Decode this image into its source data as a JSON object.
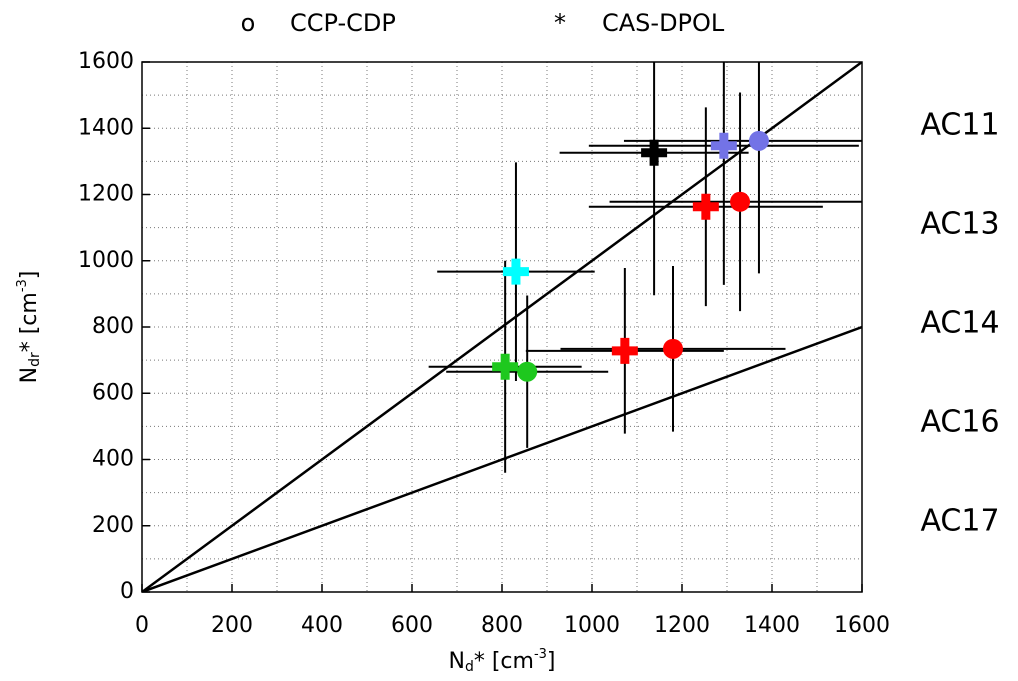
{
  "chart_data": {
    "type": "scatter",
    "legend": [
      {
        "symbol": "o",
        "label": "CCP-CDP"
      },
      {
        "symbol": "*",
        "label": "CAS-DPOL"
      }
    ],
    "xlabel": {
      "base": "N",
      "sub": "d",
      "rest": "* [cm",
      "sup": "-3",
      "end": "]"
    },
    "ylabel": {
      "base": "N",
      "sub": "dr",
      "rest": "* [cm",
      "sup": "-3",
      "end": "]"
    },
    "xlim": [
      0,
      1600
    ],
    "ylim": [
      0,
      1600
    ],
    "xticks": [
      0,
      200,
      400,
      600,
      800,
      1000,
      1200,
      1400,
      1600
    ],
    "yticks": [
      0,
      200,
      400,
      600,
      800,
      1000,
      1200,
      1400,
      1600
    ],
    "grid": true,
    "reference_lines": [
      {
        "slope": 1
      },
      {
        "slope": 0.5
      }
    ],
    "series": [
      {
        "name": "AC11",
        "color": "#7373e6",
        "circles": [
          {
            "x": 1371,
            "y": 1362,
            "xerr": 300,
            "yerr": 400
          }
        ],
        "crosses": [
          {
            "x": 1293,
            "y": 1347,
            "xerr": 300,
            "yerr": 420
          }
        ]
      },
      {
        "name": "AC13",
        "color": "#000000",
        "circles": [],
        "crosses": [
          {
            "x": 1138,
            "y": 1326,
            "xerr": 210,
            "yerr": 430
          }
        ]
      },
      {
        "name": "AC14",
        "color": "#1ec81e",
        "circles": [
          {
            "x": 856,
            "y": 665,
            "xerr": 180,
            "yerr": 230
          }
        ],
        "crosses": [
          {
            "x": 807,
            "y": 680,
            "xerr": 170,
            "yerr": 320
          }
        ]
      },
      {
        "name": "AC16",
        "color": "#00ffff",
        "circles": [],
        "crosses": [
          {
            "x": 831,
            "y": 967,
            "xerr": 175,
            "yerr": 330
          }
        ]
      },
      {
        "name": "AC17",
        "color": "#ff0000",
        "circles": [
          {
            "x": 1329,
            "y": 1178,
            "xerr": 290,
            "yerr": 330
          },
          {
            "x": 1180,
            "y": 734,
            "xerr": 250,
            "yerr": 250
          }
        ],
        "crosses": [
          {
            "x": 1253,
            "y": 1163,
            "xerr": 260,
            "yerr": 300
          },
          {
            "x": 1073,
            "y": 728,
            "xerr": 220,
            "yerr": 250
          }
        ]
      }
    ]
  }
}
